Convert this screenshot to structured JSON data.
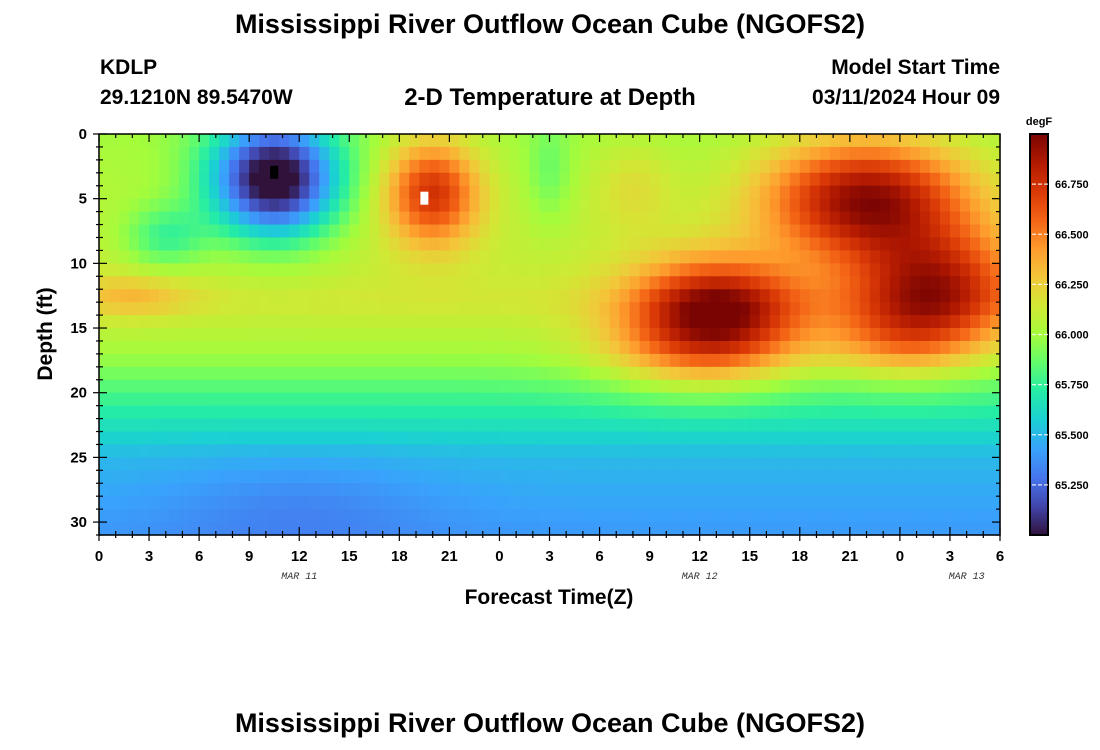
{
  "header": {
    "title": "Mississippi River Outflow Ocean Cube (NGOFS2)",
    "station": "KDLP",
    "coordinates": "29.1210N  89.5470W",
    "plot_title": "2-D Temperature at Depth",
    "start_label": "Model Start Time",
    "start_value": "03/11/2024 Hour 09"
  },
  "footer": {
    "title": "Mississippi River Outflow Ocean Cube (NGOFS2)"
  },
  "chart_data": {
    "type": "heatmap",
    "title": "2-D Temperature at Depth",
    "xlabel": "Forecast Time(Z)",
    "ylabel": "Depth (ft)",
    "x_ticks": [
      "0",
      "3",
      "6",
      "9",
      "12",
      "15",
      "18",
      "21",
      "0",
      "3",
      "6",
      "9",
      "12",
      "15",
      "18",
      "21",
      "0",
      "3",
      "6"
    ],
    "x_range_hours": [
      0,
      54
    ],
    "y_ticks": [
      "0",
      "5",
      "10",
      "15",
      "20",
      "25",
      "30"
    ],
    "y_range": [
      0,
      31
    ],
    "y_inverted": true,
    "date_labels": [
      {
        "label": "MAR 11",
        "hour": 12
      },
      {
        "label": "MAR 12",
        "hour": 36
      },
      {
        "label": "MAR 13",
        "hour": 52
      }
    ],
    "colorbar": {
      "unit": "degF",
      "min": 65.0,
      "max": 67.0,
      "ticks": [
        "65.250",
        "65.500",
        "65.750",
        "66.000",
        "66.250",
        "66.500",
        "66.750"
      ],
      "colormap": [
        "#30123b",
        "#4145ab",
        "#4675ed",
        "#39a2fc",
        "#1bcfd4",
        "#24eca6",
        "#61fc6c",
        "#a4fc3b",
        "#d1e834",
        "#f3c63a",
        "#fe9b2d",
        "#f36315",
        "#d93806",
        "#b11901",
        "#7a0402"
      ]
    },
    "markers": [
      {
        "hour": 10.5,
        "depth": 3,
        "color": "#000000"
      },
      {
        "hour": 19.5,
        "depth": 5,
        "color": "#ffffff"
      }
    ],
    "temperature_field": {
      "base_profile": [
        {
          "depth": 0,
          "degF": 66.0
        },
        {
          "depth": 10,
          "degF": 66.1
        },
        {
          "depth": 13,
          "degF": 66.15
        },
        {
          "depth": 17,
          "degF": 66.0
        },
        {
          "depth": 20,
          "degF": 65.8
        },
        {
          "depth": 25,
          "degF": 65.5
        },
        {
          "depth": 31,
          "degF": 65.4
        }
      ],
      "features": [
        {
          "hour": 10.5,
          "depth": 3.5,
          "hour_spread": 3.8,
          "depth_spread": 4.5,
          "delta": -1.15
        },
        {
          "hour": 20,
          "depth": 4.5,
          "hour_spread": 2.8,
          "depth_spread": 4.0,
          "delta": 0.7
        },
        {
          "hour": 27,
          "depth": 3,
          "hour_spread": 1.3,
          "depth_spread": 4.0,
          "delta": -0.15
        },
        {
          "hour": 32,
          "depth": 4,
          "hour_spread": 2.5,
          "depth_spread": 3.5,
          "delta": 0.15
        },
        {
          "hour": 46,
          "depth": 5,
          "hour_spread": 6.0,
          "depth_spread": 4.5,
          "delta": 0.9
        },
        {
          "hour": 50,
          "depth": 12,
          "hour_spread": 5.0,
          "depth_spread": 4.5,
          "delta": 0.75
        },
        {
          "hour": 37,
          "depth": 13.5,
          "hour_spread": 5.0,
          "depth_spread": 3.8,
          "delta": 0.85
        },
        {
          "hour": 2,
          "depth": 12.5,
          "hour_spread": 3.5,
          "depth_spread": 1.6,
          "delta": 0.2
        },
        {
          "hour": 36,
          "depth": 17,
          "hour_spread": 6.0,
          "depth_spread": 3.2,
          "delta": 0.35
        },
        {
          "hour": 48,
          "depth": 16,
          "hour_spread": 4.5,
          "depth_spread": 3.0,
          "delta": 0.3
        },
        {
          "hour": 4,
          "depth": 8,
          "hour_spread": 2.5,
          "depth_spread": 2.5,
          "delta": -0.3
        },
        {
          "hour": 12,
          "depth": 29,
          "hour_spread": 8.0,
          "depth_spread": 4.0,
          "delta": -0.1
        }
      ]
    }
  }
}
